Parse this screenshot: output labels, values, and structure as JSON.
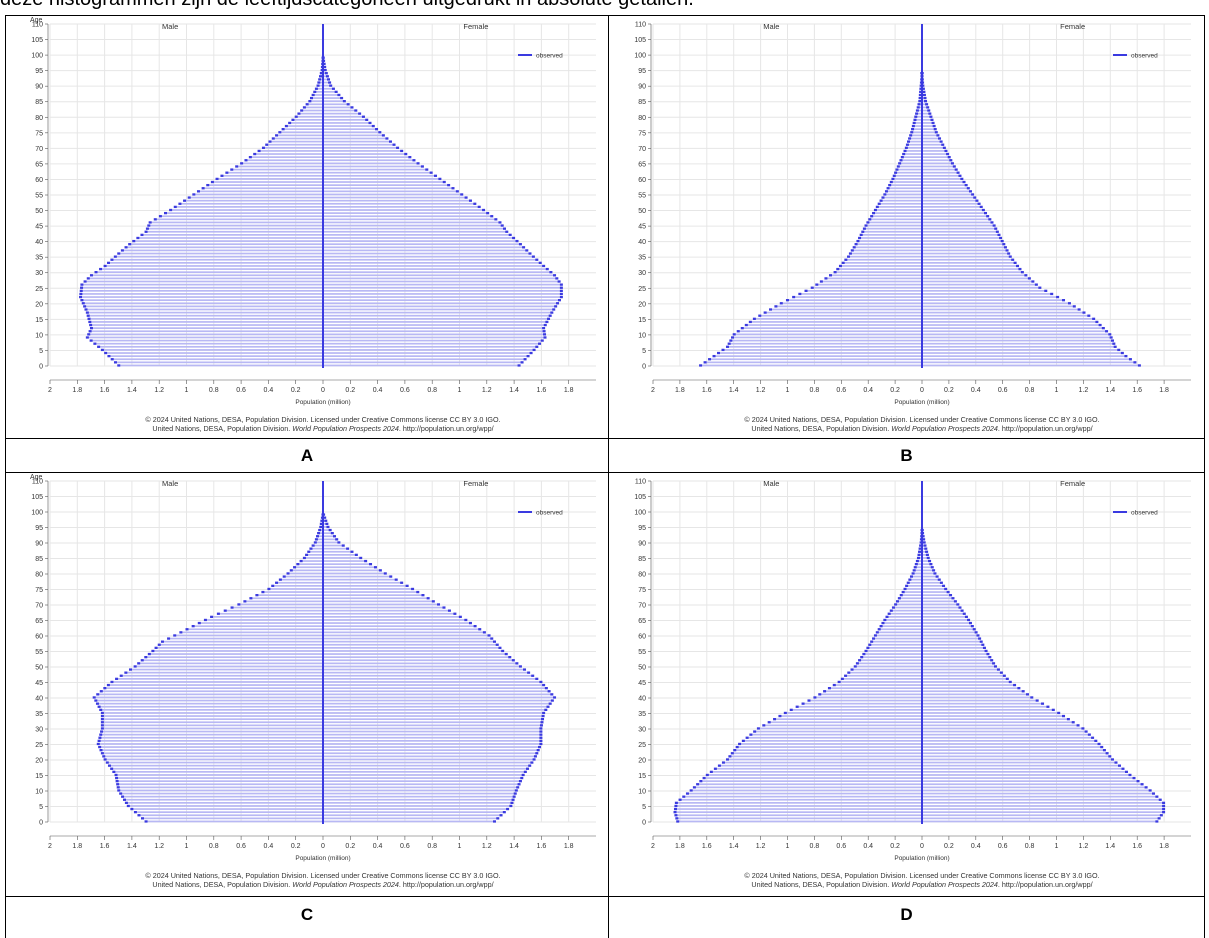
{
  "intro_text": "deze histogrammen zijn de leeftijdscategorieën uitgedrukt in absolute getallen.",
  "colors": {
    "bar": "#3a3ae0",
    "bar_light": "#b8b8f4",
    "grid": "#e6e6e6",
    "axis": "#555555"
  },
  "chart_data": [
    {
      "type": "bar",
      "panel": "A",
      "ylabel": "Age",
      "xlabel": "Population (million)",
      "left_label": "Male",
      "right_label": "Female",
      "legend": "observed",
      "legend_position": "top-right",
      "grid": true,
      "xlim": [
        0,
        2
      ],
      "ylim": [
        0,
        110
      ],
      "x_ticks": [
        "2",
        "1.8",
        "1.6",
        "1.4",
        "1.2",
        "1",
        "0.8",
        "0.6",
        "0.4",
        "0.2",
        "0",
        "0.2",
        "0.4",
        "0.6",
        "0.8",
        "1",
        "1.2",
        "1.4",
        "1.6",
        "1.8"
      ],
      "y_ticks": [
        "0",
        "5",
        "10",
        "15",
        "20",
        "25",
        "30",
        "35",
        "40",
        "45",
        "50",
        "55",
        "60",
        "65",
        "70",
        "75",
        "80",
        "85",
        "90",
        "95",
        "100",
        "105",
        "110"
      ],
      "footer1": "© 2024 United Nations, DESA, Population Division. Licensed under Creative Commons license CC BY 3.0 IGO.",
      "footer2_prefix": "United Nations, DESA, Population Division. ",
      "footer2_italic": "World Population Prospects 2024",
      "footer2_suffix": ". http://population.un.org/wpp/",
      "male_profile": [
        [
          0,
          1.5
        ],
        [
          5,
          1.62
        ],
        [
          9,
          1.73
        ],
        [
          12,
          1.7
        ],
        [
          17,
          1.73
        ],
        [
          22,
          1.78
        ],
        [
          26,
          1.77
        ],
        [
          29,
          1.7
        ],
        [
          32,
          1.6
        ],
        [
          36,
          1.5
        ],
        [
          39,
          1.42
        ],
        [
          43,
          1.3
        ],
        [
          46,
          1.27
        ],
        [
          50,
          1.12
        ],
        [
          55,
          0.95
        ],
        [
          60,
          0.78
        ],
        [
          65,
          0.6
        ],
        [
          70,
          0.44
        ],
        [
          75,
          0.32
        ],
        [
          80,
          0.2
        ],
        [
          85,
          0.1
        ],
        [
          90,
          0.04
        ],
        [
          95,
          0.01
        ],
        [
          100,
          0.0
        ],
        [
          110,
          0.0
        ]
      ],
      "female_profile": [
        [
          0,
          1.44
        ],
        [
          5,
          1.55
        ],
        [
          9,
          1.63
        ],
        [
          12,
          1.62
        ],
        [
          17,
          1.68
        ],
        [
          22,
          1.75
        ],
        [
          26,
          1.75
        ],
        [
          29,
          1.7
        ],
        [
          32,
          1.62
        ],
        [
          36,
          1.52
        ],
        [
          39,
          1.45
        ],
        [
          43,
          1.35
        ],
        [
          46,
          1.3
        ],
        [
          50,
          1.18
        ],
        [
          55,
          1.02
        ],
        [
          60,
          0.86
        ],
        [
          65,
          0.7
        ],
        [
          70,
          0.55
        ],
        [
          75,
          0.42
        ],
        [
          80,
          0.3
        ],
        [
          85,
          0.16
        ],
        [
          90,
          0.06
        ],
        [
          95,
          0.02
        ],
        [
          100,
          0.0
        ],
        [
          110,
          0.0
        ]
      ]
    },
    {
      "type": "bar",
      "panel": "B",
      "ylabel": "",
      "xlabel": "Population (million)",
      "left_label": "Male",
      "right_label": "Female",
      "legend": "observed",
      "legend_position": "top-right",
      "grid": true,
      "xlim": [
        0,
        2
      ],
      "ylim": [
        0,
        110
      ],
      "x_ticks": [
        "2",
        "1.8",
        "1.6",
        "1.4",
        "1.2",
        "1",
        "0.8",
        "0.6",
        "0.4",
        "0.2",
        "0",
        "0.2",
        "0.4",
        "0.6",
        "0.8",
        "1",
        "1.2",
        "1.4",
        "1.6",
        "1.8"
      ],
      "y_ticks": [
        "0",
        "5",
        "10",
        "15",
        "20",
        "25",
        "30",
        "35",
        "40",
        "45",
        "50",
        "55",
        "60",
        "65",
        "70",
        "75",
        "80",
        "85",
        "90",
        "95",
        "100",
        "105",
        "110"
      ],
      "footer1": "© 2024 United Nations, DESA, Population Division. Licensed under Creative Commons license CC BY 3.0 IGO.",
      "footer2_prefix": "United Nations, DESA, Population Division. ",
      "footer2_italic": "World Population Prospects 2024",
      "footer2_suffix": ". http://population.un.org/wpp/",
      "male_profile": [
        [
          0,
          1.65
        ],
        [
          3,
          1.55
        ],
        [
          6,
          1.45
        ],
        [
          10,
          1.4
        ],
        [
          15,
          1.25
        ],
        [
          20,
          1.05
        ],
        [
          25,
          0.82
        ],
        [
          30,
          0.65
        ],
        [
          35,
          0.55
        ],
        [
          40,
          0.48
        ],
        [
          45,
          0.42
        ],
        [
          50,
          0.35
        ],
        [
          55,
          0.28
        ],
        [
          60,
          0.22
        ],
        [
          65,
          0.17
        ],
        [
          70,
          0.12
        ],
        [
          75,
          0.08
        ],
        [
          80,
          0.05
        ],
        [
          85,
          0.02
        ],
        [
          90,
          0.01
        ],
        [
          95,
          0.0
        ],
        [
          110,
          0.0
        ]
      ],
      "female_profile": [
        [
          0,
          1.62
        ],
        [
          3,
          1.52
        ],
        [
          6,
          1.44
        ],
        [
          10,
          1.4
        ],
        [
          15,
          1.28
        ],
        [
          20,
          1.1
        ],
        [
          25,
          0.88
        ],
        [
          30,
          0.75
        ],
        [
          35,
          0.66
        ],
        [
          40,
          0.6
        ],
        [
          45,
          0.54
        ],
        [
          50,
          0.46
        ],
        [
          55,
          0.38
        ],
        [
          60,
          0.3
        ],
        [
          65,
          0.23
        ],
        [
          70,
          0.17
        ],
        [
          75,
          0.11
        ],
        [
          80,
          0.07
        ],
        [
          85,
          0.03
        ],
        [
          90,
          0.01
        ],
        [
          95,
          0.0
        ],
        [
          110,
          0.0
        ]
      ]
    },
    {
      "type": "bar",
      "panel": "C",
      "ylabel": "Age",
      "xlabel": "Population (million)",
      "left_label": "Male",
      "right_label": "Female",
      "legend": "observed",
      "legend_position": "top-right",
      "grid": true,
      "xlim": [
        0,
        2
      ],
      "ylim": [
        0,
        110
      ],
      "x_ticks": [
        "2",
        "1.8",
        "1.6",
        "1.4",
        "1.2",
        "1",
        "0.8",
        "0.6",
        "0.4",
        "0.2",
        "0",
        "0.2",
        "0.4",
        "0.6",
        "0.8",
        "1",
        "1.2",
        "1.4",
        "1.6",
        "1.8"
      ],
      "y_ticks": [
        "0",
        "5",
        "10",
        "15",
        "20",
        "25",
        "30",
        "35",
        "40",
        "45",
        "50",
        "55",
        "60",
        "65",
        "70",
        "75",
        "80",
        "85",
        "90",
        "95",
        "100",
        "105",
        "110"
      ],
      "footer1": "© 2024 United Nations, DESA, Population Division. Licensed under Creative Commons license CC BY 3.0 IGO.",
      "footer2_prefix": "United Nations, DESA, Population Division. ",
      "footer2_italic": "World Population Prospects 2024",
      "footer2_suffix": ". http://population.un.org/wpp/",
      "male_profile": [
        [
          0,
          1.3
        ],
        [
          5,
          1.43
        ],
        [
          10,
          1.5
        ],
        [
          15,
          1.52
        ],
        [
          20,
          1.6
        ],
        [
          25,
          1.65
        ],
        [
          30,
          1.62
        ],
        [
          35,
          1.62
        ],
        [
          40,
          1.68
        ],
        [
          45,
          1.55
        ],
        [
          50,
          1.38
        ],
        [
          55,
          1.25
        ],
        [
          58,
          1.18
        ],
        [
          62,
          1.0
        ],
        [
          66,
          0.82
        ],
        [
          70,
          0.62
        ],
        [
          75,
          0.4
        ],
        [
          80,
          0.26
        ],
        [
          85,
          0.14
        ],
        [
          90,
          0.06
        ],
        [
          95,
          0.02
        ],
        [
          100,
          0.0
        ],
        [
          110,
          0.0
        ]
      ],
      "female_profile": [
        [
          0,
          1.26
        ],
        [
          5,
          1.38
        ],
        [
          10,
          1.42
        ],
        [
          15,
          1.47
        ],
        [
          20,
          1.55
        ],
        [
          25,
          1.6
        ],
        [
          30,
          1.6
        ],
        [
          35,
          1.62
        ],
        [
          40,
          1.7
        ],
        [
          45,
          1.6
        ],
        [
          50,
          1.45
        ],
        [
          55,
          1.32
        ],
        [
          60,
          1.22
        ],
        [
          65,
          1.05
        ],
        [
          70,
          0.85
        ],
        [
          75,
          0.66
        ],
        [
          80,
          0.46
        ],
        [
          85,
          0.28
        ],
        [
          90,
          0.12
        ],
        [
          95,
          0.04
        ],
        [
          100,
          0.0
        ],
        [
          110,
          0.0
        ]
      ]
    },
    {
      "type": "bar",
      "panel": "D",
      "ylabel": "",
      "xlabel": "Population (million)",
      "left_label": "Male",
      "right_label": "Female",
      "legend": "observed",
      "legend_position": "top-right",
      "grid": true,
      "xlim": [
        0,
        2
      ],
      "ylim": [
        0,
        110
      ],
      "x_ticks": [
        "2",
        "1.8",
        "1.6",
        "1.4",
        "1.2",
        "1",
        "0.8",
        "0.6",
        "0.4",
        "0.2",
        "0",
        "0.2",
        "0.4",
        "0.6",
        "0.8",
        "1",
        "1.2",
        "1.4",
        "1.6",
        "1.8"
      ],
      "y_ticks": [
        "0",
        "5",
        "10",
        "15",
        "20",
        "25",
        "30",
        "35",
        "40",
        "45",
        "50",
        "55",
        "60",
        "65",
        "70",
        "75",
        "80",
        "85",
        "90",
        "95",
        "100",
        "105",
        "110"
      ],
      "footer1": "© 2024 United Nations, DESA, Population Division. Licensed under Creative Commons license CC BY 3.0 IGO.",
      "footer2_prefix": "United Nations, DESA, Population Division. ",
      "footer2_italic": "World Population Prospects 2024",
      "footer2_suffix": ". http://population.un.org/wpp/",
      "male_profile": [
        [
          0,
          1.82
        ],
        [
          3,
          1.84
        ],
        [
          6,
          1.83
        ],
        [
          10,
          1.72
        ],
        [
          15,
          1.6
        ],
        [
          20,
          1.45
        ],
        [
          25,
          1.36
        ],
        [
          30,
          1.22
        ],
        [
          35,
          1.02
        ],
        [
          40,
          0.8
        ],
        [
          45,
          0.62
        ],
        [
          50,
          0.5
        ],
        [
          55,
          0.42
        ],
        [
          60,
          0.35
        ],
        [
          65,
          0.28
        ],
        [
          70,
          0.2
        ],
        [
          75,
          0.13
        ],
        [
          80,
          0.07
        ],
        [
          85,
          0.03
        ],
        [
          90,
          0.01
        ],
        [
          95,
          0.0
        ],
        [
          110,
          0.0
        ]
      ],
      "female_profile": [
        [
          0,
          1.75
        ],
        [
          3,
          1.8
        ],
        [
          6,
          1.8
        ],
        [
          10,
          1.7
        ],
        [
          15,
          1.55
        ],
        [
          20,
          1.42
        ],
        [
          25,
          1.32
        ],
        [
          30,
          1.2
        ],
        [
          35,
          1.02
        ],
        [
          40,
          0.82
        ],
        [
          45,
          0.66
        ],
        [
          50,
          0.55
        ],
        [
          55,
          0.48
        ],
        [
          60,
          0.42
        ],
        [
          65,
          0.35
        ],
        [
          70,
          0.27
        ],
        [
          75,
          0.18
        ],
        [
          80,
          0.1
        ],
        [
          85,
          0.05
        ],
        [
          90,
          0.02
        ],
        [
          95,
          0.0
        ],
        [
          110,
          0.0
        ]
      ]
    }
  ],
  "captions": [
    "A",
    "B",
    "C",
    "D"
  ]
}
